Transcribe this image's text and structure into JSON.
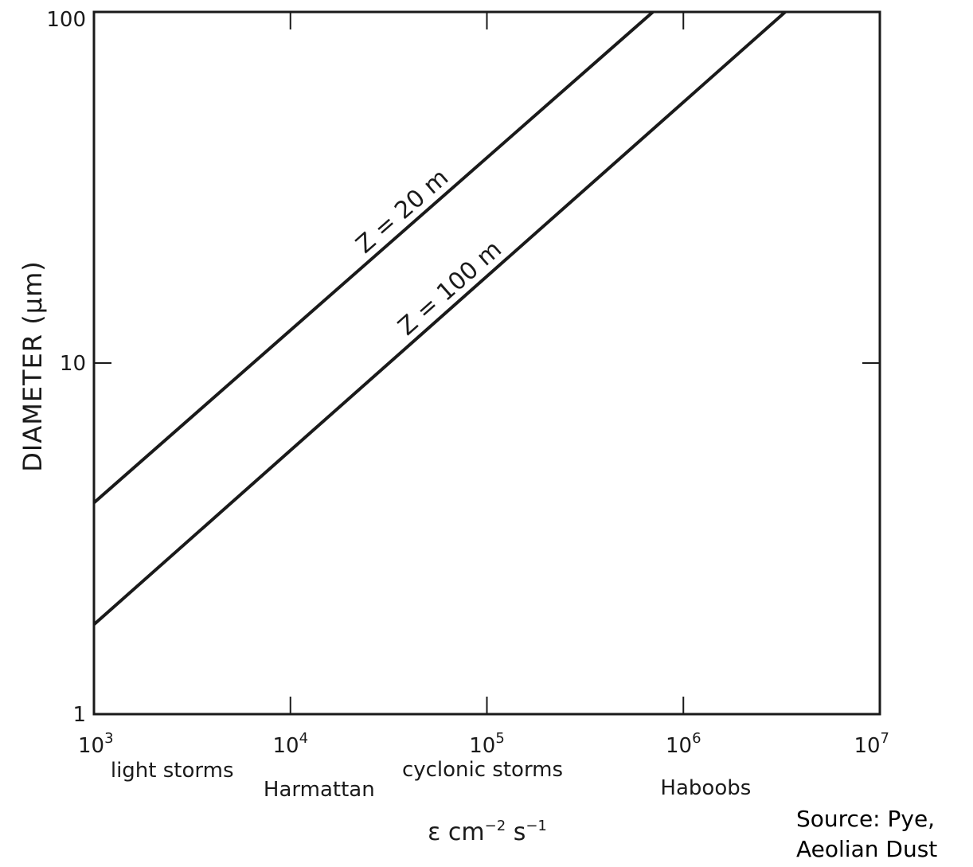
{
  "chart_data": {
    "type": "line",
    "xscale": "log",
    "yscale": "log",
    "xlim": [
      1000,
      10000000
    ],
    "ylim": [
      1,
      100
    ],
    "x_ticks": [
      {
        "base": "10",
        "exp": "3",
        "value": 1000
      },
      {
        "base": "10",
        "exp": "4",
        "value": 10000
      },
      {
        "base": "10",
        "exp": "5",
        "value": 100000
      },
      {
        "base": "10",
        "exp": "6",
        "value": 1000000
      },
      {
        "base": "10",
        "exp": "7",
        "value": 10000000
      }
    ],
    "y_ticks": [
      {
        "label": "1",
        "value": 1
      },
      {
        "label": "10",
        "value": 10
      },
      {
        "label": "100",
        "value": 100
      }
    ],
    "ylabel": "DIAMETER (μm)",
    "xlabel": {
      "symbol": "ε",
      "unit1": "cm",
      "exp1": "−2",
      "unit2": "s",
      "exp2": "−1"
    },
    "series": [
      {
        "name": "Z = 20 m",
        "x": [
          1000,
          700000
        ],
        "y": [
          4.0,
          100
        ]
      },
      {
        "name": "Z = 100 m",
        "x": [
          1000,
          3300000
        ],
        "y": [
          1.8,
          100
        ]
      }
    ],
    "annotations": [
      {
        "text": "light storms",
        "x": 2500
      },
      {
        "text": "Harmattan",
        "x": 14000
      },
      {
        "text": "cyclonic storms",
        "x": 95000
      },
      {
        "text": "Haboobs",
        "x": 1300000
      }
    ],
    "grid": false
  },
  "source": {
    "line1": "Source: Pye,",
    "line2": "Aeolian Dust"
  }
}
